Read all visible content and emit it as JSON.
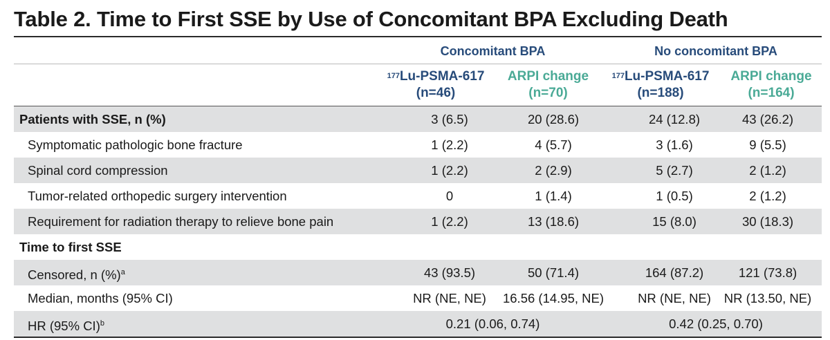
{
  "title": "Table 2. Time to First SSE by Use of Concomitant BPA Excluding Death",
  "groups": [
    "Concomitant BPA",
    "No concomitant BPA"
  ],
  "columns": [
    {
      "sup": "177",
      "name": "Lu-PSMA-617",
      "n": "(n=46)"
    },
    {
      "sup": "",
      "name": "ARPI change",
      "n": "(n=70)"
    },
    {
      "sup": "177",
      "name": "Lu-PSMA-617",
      "n": "(n=188)"
    },
    {
      "sup": "",
      "name": "ARPI change",
      "n": "(n=164)"
    }
  ],
  "rows": [
    {
      "label": "Patients with SSE, n (%)",
      "values": [
        "3 (6.5)",
        "20 (28.6)",
        "24 (12.8)",
        "43 (26.2)"
      ]
    },
    {
      "label": "Symptomatic pathologic bone fracture",
      "values": [
        "1 (2.2)",
        "4 (5.7)",
        "3 (1.6)",
        "9 (5.5)"
      ]
    },
    {
      "label": "Spinal cord compression",
      "values": [
        "1 (2.2)",
        "2 (2.9)",
        "5 (2.7)",
        "2 (1.2)"
      ]
    },
    {
      "label": "Tumor-related orthopedic surgery intervention",
      "values": [
        "0",
        "1 (1.4)",
        "1 (0.5)",
        "2 (1.2)"
      ]
    },
    {
      "label": "Requirement for radiation therapy to relieve bone pain",
      "values": [
        "1 (2.2)",
        "13 (18.6)",
        "15 (8.0)",
        "30 (18.3)"
      ]
    },
    {
      "label": "Time to first SSE",
      "values": []
    },
    {
      "label": "Censored, n (%)",
      "sup": "a",
      "values": [
        "43 (93.5)",
        "50 (71.4)",
        "164 (87.2)",
        "121 (73.8)"
      ]
    },
    {
      "label": "Median, months (95% CI)",
      "values": [
        "NR (NE, NE)",
        "16.56 (14.95, NE)",
        "NR (NE, NE)",
        "NR (13.50, NE)"
      ]
    },
    {
      "label": "HR (95% CI)",
      "sup": "b",
      "values": [
        "0.21 (0.06, 0.74)",
        "0.42 (0.25, 0.70)"
      ]
    }
  ]
}
